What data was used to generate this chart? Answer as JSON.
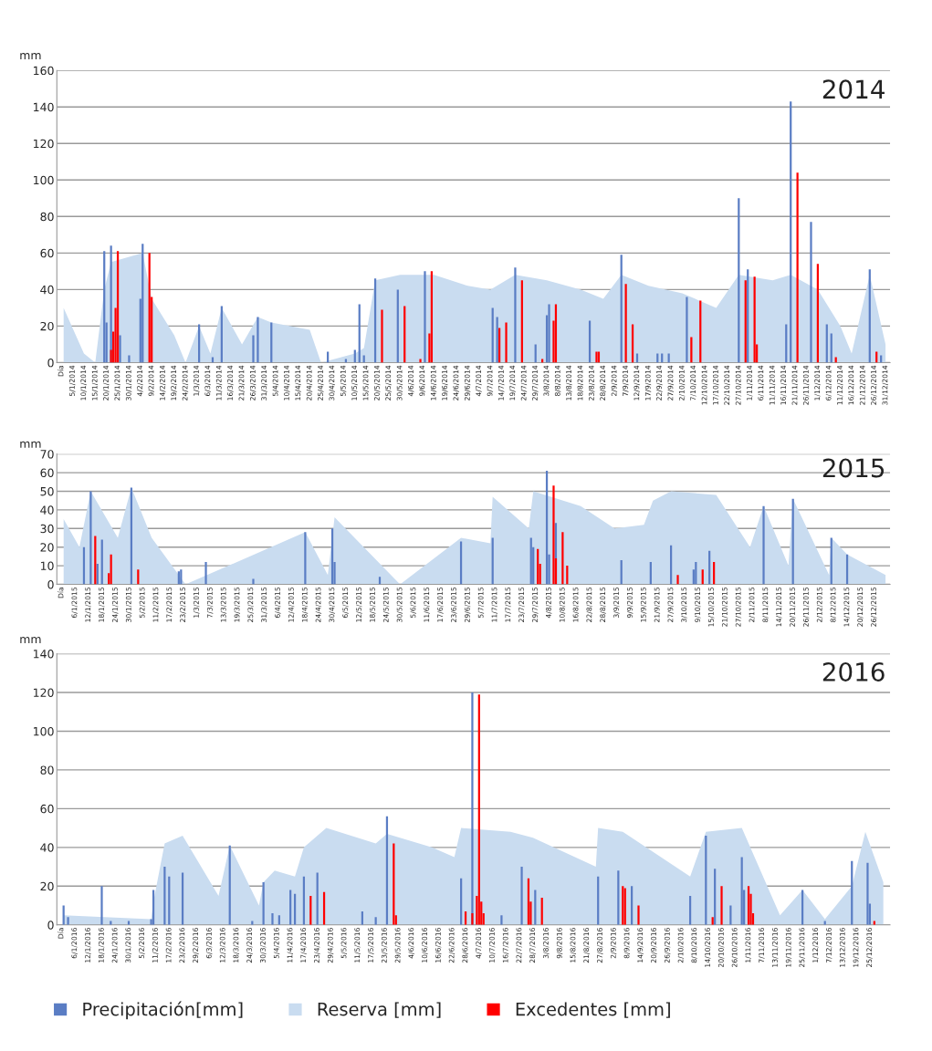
{
  "chart_data": [
    {
      "type": "bar",
      "title": "2014",
      "ylabel": "mm",
      "grid": "y",
      "xlim": [
        "2013-12-29",
        "2015-01-02"
      ],
      "ylim": [
        0,
        160
      ],
      "yticks": [
        0,
        20,
        40,
        60,
        80,
        100,
        120,
        140,
        160
      ],
      "xticks": [
        {
          "value": "2013-12-31",
          "label": "Día"
        },
        {
          "value": "2014-01-05",
          "label": "5/1/2014"
        },
        {
          "value": "2014-01-10",
          "label": "10/1/2014"
        },
        {
          "value": "2014-01-15",
          "label": "15/1/2014"
        },
        {
          "value": "2014-01-20",
          "label": "20/1/2014"
        },
        {
          "value": "2014-01-25",
          "label": "25/1/2014"
        },
        {
          "value": "2014-01-30",
          "label": "30/1/2014"
        },
        {
          "value": "2014-02-04",
          "label": "4/2/2014"
        },
        {
          "value": "2014-02-09",
          "label": "9/2/2014"
        },
        {
          "value": "2014-02-14",
          "label": "14/2/2014"
        },
        {
          "value": "2014-02-19",
          "label": "19/2/2014"
        },
        {
          "value": "2014-02-24",
          "label": "24/2/2014"
        },
        {
          "value": "2014-03-01",
          "label": "1/3/2014"
        },
        {
          "value": "2014-03-06",
          "label": "6/3/2014"
        },
        {
          "value": "2014-03-11",
          "label": "11/3/2014"
        },
        {
          "value": "2014-03-16",
          "label": "16/3/2014"
        },
        {
          "value": "2014-03-21",
          "label": "21/3/2014"
        },
        {
          "value": "2014-03-26",
          "label": "26/3/2014"
        },
        {
          "value": "2014-03-31",
          "label": "31/3/2014"
        },
        {
          "value": "2014-04-05",
          "label": "5/4/2014"
        },
        {
          "value": "2014-04-10",
          "label": "10/4/2014"
        },
        {
          "value": "2014-04-15",
          "label": "15/4/2014"
        },
        {
          "value": "2014-04-20",
          "label": "20/4/2014"
        },
        {
          "value": "2014-04-25",
          "label": "25/4/2014"
        },
        {
          "value": "2014-04-30",
          "label": "30/4/2014"
        },
        {
          "value": "2014-05-05",
          "label": "5/5/2014"
        },
        {
          "value": "2014-05-10",
          "label": "10/5/2014"
        },
        {
          "value": "2014-05-15",
          "label": "15/5/2014"
        },
        {
          "value": "2014-05-20",
          "label": "20/5/2014"
        },
        {
          "value": "2014-05-25",
          "label": "25/5/2014"
        },
        {
          "value": "2014-05-30",
          "label": "30/5/2014"
        },
        {
          "value": "2014-06-04",
          "label": "4/6/2014"
        },
        {
          "value": "2014-06-09",
          "label": "9/6/2014"
        },
        {
          "value": "2014-06-14",
          "label": "14/6/2014"
        },
        {
          "value": "2014-06-19",
          "label": "19/6/2014"
        },
        {
          "value": "2014-06-24",
          "label": "24/6/2014"
        },
        {
          "value": "2014-06-29",
          "label": "29/6/2014"
        },
        {
          "value": "2014-07-04",
          "label": "4/7/2014"
        },
        {
          "value": "2014-07-09",
          "label": "9/7/2014"
        },
        {
          "value": "2014-07-14",
          "label": "14/7/2014"
        },
        {
          "value": "2014-07-19",
          "label": "19/7/2014"
        },
        {
          "value": "2014-07-24",
          "label": "24/7/2014"
        },
        {
          "value": "2014-07-29",
          "label": "29/7/2014"
        },
        {
          "value": "2014-08-03",
          "label": "3/8/2014"
        },
        {
          "value": "2014-08-08",
          "label": "8/8/2014"
        },
        {
          "value": "2014-08-13",
          "label": "13/8/2014"
        },
        {
          "value": "2014-08-18",
          "label": "18/8/2014"
        },
        {
          "value": "2014-08-23",
          "label": "23/8/2014"
        },
        {
          "value": "2014-08-28",
          "label": "28/8/2014"
        },
        {
          "value": "2014-09-02",
          "label": "2/9/2014"
        },
        {
          "value": "2014-09-07",
          "label": "7/9/2014"
        },
        {
          "value": "2014-09-12",
          "label": "12/9/2014"
        },
        {
          "value": "2014-09-17",
          "label": "17/9/2014"
        },
        {
          "value": "2014-09-22",
          "label": "22/9/2014"
        },
        {
          "value": "2014-09-27",
          "label": "27/9/2014"
        },
        {
          "value": "2014-10-02",
          "label": "2/10/2014"
        },
        {
          "value": "2014-10-07",
          "label": "7/10/2014"
        },
        {
          "value": "2014-10-12",
          "label": "12/10/2014"
        },
        {
          "value": "2014-10-17",
          "label": "17/10/2014"
        },
        {
          "value": "2014-10-22",
          "label": "22/10/2014"
        },
        {
          "value": "2014-10-27",
          "label": "27/10/2014"
        },
        {
          "value": "2014-11-01",
          "label": "1/11/2014"
        },
        {
          "value": "2014-11-06",
          "label": "6/11/2014"
        },
        {
          "value": "2014-11-11",
          "label": "11/11/2014"
        },
        {
          "value": "2014-11-16",
          "label": "16/11/2014"
        },
        {
          "value": "2014-11-21",
          "label": "21/11/2014"
        },
        {
          "value": "2014-11-26",
          "label": "26/11/2014"
        },
        {
          "value": "2014-12-01",
          "label": "1/12/2014"
        },
        {
          "value": "2014-12-06",
          "label": "6/12/2014"
        },
        {
          "value": "2014-12-11",
          "label": "11/12/2014"
        },
        {
          "value": "2014-12-16",
          "label": "16/12/2014"
        },
        {
          "value": "2014-12-21",
          "label": "21/12/2014"
        },
        {
          "value": "2014-12-26",
          "label": "26/12/2014"
        },
        {
          "value": "2014-12-31",
          "label": "31/12/2014"
        }
      ],
      "series": [
        {
          "color": "#5a7dc4",
          "x": [
            "2014-01-19",
            "2014-01-20",
            "2014-01-22",
            "2014-01-26",
            "2014-01-30",
            "2014-02-04",
            "2014-02-05",
            "2014-03-02",
            "2014-03-08",
            "2014-03-12",
            "2014-03-26",
            "2014-03-28",
            "2014-04-03",
            "2014-04-28",
            "2014-05-06",
            "2014-05-10",
            "2014-05-12",
            "2014-05-14",
            "2014-05-19",
            "2014-05-29",
            "2014-06-10",
            "2014-07-10",
            "2014-07-12",
            "2014-07-20",
            "2014-07-29",
            "2014-08-03",
            "2014-08-04",
            "2014-08-22",
            "2014-09-05",
            "2014-09-12",
            "2014-09-21",
            "2014-09-23",
            "2014-09-26",
            "2014-10-04",
            "2014-10-27",
            "2014-10-31",
            "2014-11-17",
            "2014-11-19",
            "2014-11-28",
            "2014-12-05",
            "2014-12-07",
            "2014-12-24",
            "2014-12-29"
          ],
          "values": [
            61,
            22,
            64,
            15,
            4,
            35,
            65,
            21,
            3,
            31,
            15,
            25,
            22,
            6,
            2,
            7,
            32,
            4,
            46,
            40,
            50,
            30,
            25,
            52,
            10,
            26,
            32,
            23,
            59,
            5,
            5,
            5,
            5,
            36,
            90,
            51,
            21,
            143,
            77,
            21,
            16,
            51,
            4
          ]
        },
        {
          "type": "area",
          "color": "#c9dcf0",
          "x": [
            "2014-01-01",
            "2014-01-10",
            "2014-01-15",
            "2014-01-19",
            "2014-01-22",
            "2014-02-05",
            "2014-02-09",
            "2014-02-19",
            "2014-02-24",
            "2014-03-02",
            "2014-03-07",
            "2014-03-12",
            "2014-03-21",
            "2014-03-28",
            "2014-04-03",
            "2014-04-20",
            "2014-04-25",
            "2014-05-10",
            "2014-05-14",
            "2014-05-19",
            "2014-05-30",
            "2014-06-14",
            "2014-06-29",
            "2014-07-09",
            "2014-07-20",
            "2014-08-03",
            "2014-08-18",
            "2014-08-28",
            "2014-09-05",
            "2014-09-17",
            "2014-10-02",
            "2014-10-17",
            "2014-10-27",
            "2014-11-11",
            "2014-11-19",
            "2014-12-01",
            "2014-12-11",
            "2014-12-16",
            "2014-12-24",
            "2014-12-31"
          ],
          "values": [
            30,
            5,
            0,
            40,
            55,
            60,
            35,
            15,
            0,
            20,
            5,
            30,
            10,
            25,
            22,
            18,
            0,
            5,
            8,
            45,
            48,
            48,
            42,
            40,
            48,
            45,
            40,
            35,
            48,
            42,
            38,
            30,
            48,
            45,
            48,
            40,
            20,
            5,
            48,
            10
          ]
        },
        {
          "color": "#ff0000",
          "x": [
            "2014-01-22",
            "2014-01-23",
            "2014-01-24",
            "2014-01-25",
            "2014-02-08",
            "2014-02-09",
            "2014-05-22",
            "2014-06-01",
            "2014-06-08",
            "2014-06-12",
            "2014-06-13",
            "2014-07-13",
            "2014-07-16",
            "2014-07-23",
            "2014-08-01",
            "2014-08-06",
            "2014-08-07",
            "2014-08-25",
            "2014-08-26",
            "2014-09-07",
            "2014-09-10",
            "2014-10-06",
            "2014-10-10",
            "2014-10-30",
            "2014-11-03",
            "2014-11-04",
            "2014-11-22",
            "2014-12-01",
            "2014-12-09",
            "2014-12-27"
          ],
          "values": [
            7,
            17,
            30,
            61,
            60,
            36,
            29,
            31,
            2,
            16,
            50,
            19,
            22,
            45,
            2,
            23,
            32,
            6,
            6,
            43,
            21,
            14,
            34,
            45,
            47,
            10,
            104,
            54,
            3,
            6
          ]
        }
      ]
    },
    {
      "type": "bar",
      "title": "2015",
      "ylabel": "mm",
      "grid": "y",
      "xlim": [
        "2014-12-29",
        "2016-01-02"
      ],
      "ylim": [
        0,
        70
      ],
      "yticks": [
        0,
        10,
        20,
        30,
        40,
        50,
        60,
        70
      ],
      "xticks": [
        {
          "value": "2014-12-31",
          "label": "Día"
        },
        {
          "value": "2015-01-06",
          "label": "6/1/2015"
        },
        {
          "value": "2015-01-12",
          "label": "12/1/2015"
        },
        {
          "value": "2015-01-18",
          "label": "18/1/2015"
        },
        {
          "value": "2015-01-24",
          "label": "24/1/2015"
        },
        {
          "value": "2015-01-30",
          "label": "30/1/2015"
        },
        {
          "value": "2015-02-05",
          "label": "5/2/2015"
        },
        {
          "value": "2015-02-11",
          "label": "11/2/2015"
        },
        {
          "value": "2015-02-17",
          "label": "17/2/2015"
        },
        {
          "value": "2015-02-23",
          "label": "23/2/2015"
        },
        {
          "value": "2015-03-01",
          "label": "1/3/2015"
        },
        {
          "value": "2015-03-07",
          "label": "7/3/2015"
        },
        {
          "value": "2015-03-13",
          "label": "13/3/2015"
        },
        {
          "value": "2015-03-19",
          "label": "19/3/2015"
        },
        {
          "value": "2015-03-25",
          "label": "25/3/2015"
        },
        {
          "value": "2015-03-31",
          "label": "31/3/2015"
        },
        {
          "value": "2015-04-06",
          "label": "6/4/2015"
        },
        {
          "value": "2015-04-12",
          "label": "12/4/2015"
        },
        {
          "value": "2015-04-18",
          "label": "18/4/2015"
        },
        {
          "value": "2015-04-24",
          "label": "24/4/2015"
        },
        {
          "value": "2015-04-30",
          "label": "30/4/2015"
        },
        {
          "value": "2015-05-06",
          "label": "6/5/2015"
        },
        {
          "value": "2015-05-12",
          "label": "12/5/2015"
        },
        {
          "value": "2015-05-18",
          "label": "18/5/2015"
        },
        {
          "value": "2015-05-24",
          "label": "24/5/2015"
        },
        {
          "value": "2015-05-30",
          "label": "30/5/2015"
        },
        {
          "value": "2015-06-05",
          "label": "5/6/2015"
        },
        {
          "value": "2015-06-11",
          "label": "11/6/2015"
        },
        {
          "value": "2015-06-17",
          "label": "17/6/2015"
        },
        {
          "value": "2015-06-23",
          "label": "23/6/2015"
        },
        {
          "value": "2015-06-29",
          "label": "29/6/2015"
        },
        {
          "value": "2015-07-05",
          "label": "5/7/2015"
        },
        {
          "value": "2015-07-11",
          "label": "11/7/2015"
        },
        {
          "value": "2015-07-17",
          "label": "17/7/2015"
        },
        {
          "value": "2015-07-23",
          "label": "23/7/2015"
        },
        {
          "value": "2015-07-29",
          "label": "29/7/2015"
        },
        {
          "value": "2015-08-04",
          "label": "4/8/2015"
        },
        {
          "value": "2015-08-10",
          "label": "10/8/2015"
        },
        {
          "value": "2015-08-16",
          "label": "16/8/2015"
        },
        {
          "value": "2015-08-22",
          "label": "22/8/2015"
        },
        {
          "value": "2015-08-28",
          "label": "28/8/2015"
        },
        {
          "value": "2015-09-03",
          "label": "3/9/2015"
        },
        {
          "value": "2015-09-09",
          "label": "9/9/2015"
        },
        {
          "value": "2015-09-15",
          "label": "15/9/2015"
        },
        {
          "value": "2015-09-21",
          "label": "21/9/2015"
        },
        {
          "value": "2015-09-27",
          "label": "27/9/2015"
        },
        {
          "value": "2015-10-03",
          "label": "3/10/2015"
        },
        {
          "value": "2015-10-09",
          "label": "9/10/2015"
        },
        {
          "value": "2015-10-15",
          "label": "15/10/2015"
        },
        {
          "value": "2015-10-21",
          "label": "21/10/2015"
        },
        {
          "value": "2015-10-27",
          "label": "27/10/2015"
        },
        {
          "value": "2015-11-02",
          "label": "2/11/2015"
        },
        {
          "value": "2015-11-08",
          "label": "8/11/2015"
        },
        {
          "value": "2015-11-14",
          "label": "14/11/2015"
        },
        {
          "value": "2015-11-20",
          "label": "20/11/2015"
        },
        {
          "value": "2015-11-26",
          "label": "26/11/2015"
        },
        {
          "value": "2015-12-02",
          "label": "2/12/2015"
        },
        {
          "value": "2015-12-08",
          "label": "8/12/2015"
        },
        {
          "value": "2015-12-14",
          "label": "14/12/2015"
        },
        {
          "value": "2015-12-20",
          "label": "20/12/2015"
        },
        {
          "value": "2015-12-26",
          "label": "26/12/2015"
        }
      ],
      "series": [
        {
          "color": "#5a7dc4",
          "x": [
            "2015-01-10",
            "2015-01-13",
            "2015-01-16",
            "2015-01-18",
            "2015-01-31",
            "2015-02-21",
            "2015-02-22",
            "2015-03-05",
            "2015-03-26",
            "2015-04-18",
            "2015-04-30",
            "2015-05-01",
            "2015-05-21",
            "2015-06-26",
            "2015-07-10",
            "2015-07-27",
            "2015-07-28",
            "2015-08-03",
            "2015-08-04",
            "2015-08-07",
            "2015-09-05",
            "2015-09-18",
            "2015-09-27",
            "2015-10-07",
            "2015-10-08",
            "2015-10-14",
            "2015-11-07",
            "2015-11-20",
            "2015-12-07",
            "2015-12-14"
          ],
          "values": [
            20,
            50,
            11,
            24,
            52,
            7,
            8,
            12,
            3,
            28,
            30,
            12,
            4,
            23,
            25,
            25,
            20,
            61,
            16,
            33,
            13,
            12,
            21,
            8,
            12,
            18,
            42,
            46,
            25,
            16
          ]
        },
        {
          "type": "area",
          "color": "#c9dcf0",
          "x": [
            "2015-01-01",
            "2015-01-08",
            "2015-01-13",
            "2015-01-25",
            "2015-01-31",
            "2015-02-09",
            "2015-02-24",
            "2015-04-18",
            "2015-04-28",
            "2015-05-01",
            "2015-05-30",
            "2015-06-26",
            "2015-07-09",
            "2015-07-10",
            "2015-07-26",
            "2015-07-28",
            "2015-08-18",
            "2015-09-02",
            "2015-09-15",
            "2015-09-19",
            "2015-09-27",
            "2015-10-17",
            "2015-11-01",
            "2015-11-07",
            "2015-11-18",
            "2015-11-20",
            "2015-12-06",
            "2015-12-07",
            "2015-12-14",
            "2015-12-31"
          ],
          "values": [
            35,
            20,
            50,
            25,
            52,
            25,
            0,
            28,
            5,
            36,
            0,
            25,
            22,
            47,
            30,
            50,
            42,
            30,
            32,
            45,
            50,
            48,
            20,
            42,
            10,
            46,
            5,
            25,
            16,
            5
          ]
        },
        {
          "color": "#ff0000",
          "x": [
            "2015-01-15",
            "2015-01-21",
            "2015-01-22",
            "2015-02-03",
            "2015-07-30",
            "2015-07-31",
            "2015-08-06",
            "2015-08-07",
            "2015-08-10",
            "2015-08-12",
            "2015-09-30",
            "2015-10-11",
            "2015-10-16"
          ],
          "values": [
            26,
            6,
            16,
            8,
            19,
            11,
            53,
            14,
            28,
            10,
            5,
            8,
            12
          ]
        }
      ]
    },
    {
      "type": "bar",
      "title": "2016",
      "ylabel": "mm",
      "grid": "y",
      "legend": "bottom",
      "xlim": [
        "2015-12-29",
        "2017-01-03"
      ],
      "ylim": [
        0,
        140
      ],
      "yticks": [
        0,
        20,
        40,
        60,
        80,
        100,
        120,
        140
      ],
      "xticks": [
        {
          "value": "2015-12-31",
          "label": "Día"
        },
        {
          "value": "2016-01-06",
          "label": "6/1/2016"
        },
        {
          "value": "2016-01-12",
          "label": "12/1/2016"
        },
        {
          "value": "2016-01-18",
          "label": "18/1/2016"
        },
        {
          "value": "2016-01-24",
          "label": "24/1/2016"
        },
        {
          "value": "2016-01-30",
          "label": "30/1/2016"
        },
        {
          "value": "2016-02-05",
          "label": "5/2/2016"
        },
        {
          "value": "2016-02-11",
          "label": "11/2/2016"
        },
        {
          "value": "2016-02-17",
          "label": "17/2/2016"
        },
        {
          "value": "2016-02-23",
          "label": "23/2/2016"
        },
        {
          "value": "2016-02-29",
          "label": "29/2/2016"
        },
        {
          "value": "2016-03-06",
          "label": "6/3/2016"
        },
        {
          "value": "2016-03-12",
          "label": "12/3/2016"
        },
        {
          "value": "2016-03-18",
          "label": "18/3/2016"
        },
        {
          "value": "2016-03-24",
          "label": "24/3/2016"
        },
        {
          "value": "2016-03-30",
          "label": "30/3/2016"
        },
        {
          "value": "2016-04-05",
          "label": "5/4/2016"
        },
        {
          "value": "2016-04-11",
          "label": "11/4/2016"
        },
        {
          "value": "2016-04-17",
          "label": "17/4/2016"
        },
        {
          "value": "2016-04-23",
          "label": "23/4/2016"
        },
        {
          "value": "2016-04-29",
          "label": "29/4/2016"
        },
        {
          "value": "2016-05-05",
          "label": "5/5/2016"
        },
        {
          "value": "2016-05-11",
          "label": "11/5/2016"
        },
        {
          "value": "2016-05-17",
          "label": "17/5/2016"
        },
        {
          "value": "2016-05-23",
          "label": "23/5/2016"
        },
        {
          "value": "2016-05-29",
          "label": "29/5/2016"
        },
        {
          "value": "2016-06-04",
          "label": "4/6/2016"
        },
        {
          "value": "2016-06-10",
          "label": "10/6/2016"
        },
        {
          "value": "2016-06-16",
          "label": "16/6/2016"
        },
        {
          "value": "2016-06-22",
          "label": "22/6/2016"
        },
        {
          "value": "2016-06-28",
          "label": "28/6/2016"
        },
        {
          "value": "2016-07-04",
          "label": "4/7/2016"
        },
        {
          "value": "2016-07-10",
          "label": "10/7/2016"
        },
        {
          "value": "2016-07-16",
          "label": "16/7/2016"
        },
        {
          "value": "2016-07-22",
          "label": "22/7/2016"
        },
        {
          "value": "2016-07-28",
          "label": "28/7/2016"
        },
        {
          "value": "2016-08-03",
          "label": "3/8/2016"
        },
        {
          "value": "2016-08-09",
          "label": "9/8/2016"
        },
        {
          "value": "2016-08-15",
          "label": "15/8/2016"
        },
        {
          "value": "2016-08-21",
          "label": "21/8/2016"
        },
        {
          "value": "2016-08-27",
          "label": "27/8/2016"
        },
        {
          "value": "2016-09-02",
          "label": "2/9/2016"
        },
        {
          "value": "2016-09-08",
          "label": "8/9/2016"
        },
        {
          "value": "2016-09-14",
          "label": "14/9/2016"
        },
        {
          "value": "2016-09-20",
          "label": "20/9/2016"
        },
        {
          "value": "2016-09-26",
          "label": "26/9/2016"
        },
        {
          "value": "2016-10-02",
          "label": "2/10/2016"
        },
        {
          "value": "2016-10-08",
          "label": "8/10/2016"
        },
        {
          "value": "2016-10-14",
          "label": "14/10/2016"
        },
        {
          "value": "2016-10-20",
          "label": "20/10/2016"
        },
        {
          "value": "2016-10-26",
          "label": "26/10/2016"
        },
        {
          "value": "2016-11-01",
          "label": "1/11/2016"
        },
        {
          "value": "2016-11-07",
          "label": "7/11/2016"
        },
        {
          "value": "2016-11-13",
          "label": "13/11/2016"
        },
        {
          "value": "2016-11-19",
          "label": "19/11/2016"
        },
        {
          "value": "2016-11-25",
          "label": "25/11/2016"
        },
        {
          "value": "2016-12-01",
          "label": "1/12/2016"
        },
        {
          "value": "2016-12-07",
          "label": "7/12/2016"
        },
        {
          "value": "2016-12-13",
          "label": "13/12/2016"
        },
        {
          "value": "2016-12-19",
          "label": "19/12/2016"
        },
        {
          "value": "2016-12-25",
          "label": "25/12/2016"
        }
      ],
      "series": [
        {
          "name": "Precipitación[mm]",
          "color": "#5a7dc4",
          "x": [
            "2016-01-01",
            "2016-01-03",
            "2016-01-18",
            "2016-01-22",
            "2016-01-30",
            "2016-02-09",
            "2016-02-10",
            "2016-02-15",
            "2016-02-17",
            "2016-02-23",
            "2016-03-15",
            "2016-03-25",
            "2016-03-30",
            "2016-04-03",
            "2016-04-06",
            "2016-04-11",
            "2016-04-13",
            "2016-04-17",
            "2016-04-23",
            "2016-05-13",
            "2016-05-19",
            "2016-05-24",
            "2016-06-26",
            "2016-07-01",
            "2016-07-14",
            "2016-07-23",
            "2016-07-29",
            "2016-08-26",
            "2016-09-04",
            "2016-09-10",
            "2016-10-06",
            "2016-10-13",
            "2016-10-17",
            "2016-10-24",
            "2016-10-29",
            "2016-10-30",
            "2016-11-25",
            "2016-12-05",
            "2016-12-17",
            "2016-12-24",
            "2016-12-25"
          ],
          "values": [
            10,
            4,
            20,
            2,
            2,
            3,
            18,
            30,
            25,
            27,
            41,
            2,
            22,
            6,
            5,
            18,
            16,
            25,
            27,
            7,
            4,
            56,
            24,
            120,
            5,
            30,
            18,
            25,
            28,
            20,
            15,
            46,
            29,
            10,
            35,
            18,
            18,
            2,
            33,
            32,
            11
          ]
        },
        {
          "type": "area",
          "name": "Reserva [mm]",
          "color": "#c9dcf0",
          "x": [
            "2016-01-01",
            "2016-02-09",
            "2016-02-10",
            "2016-02-15",
            "2016-02-23",
            "2016-03-10",
            "2016-03-15",
            "2016-03-28",
            "2016-03-30",
            "2016-04-04",
            "2016-04-13",
            "2016-04-17",
            "2016-04-27",
            "2016-05-19",
            "2016-05-24",
            "2016-06-13",
            "2016-06-23",
            "2016-06-26",
            "2016-07-18",
            "2016-07-28",
            "2016-08-25",
            "2016-08-26",
            "2016-09-06",
            "2016-10-06",
            "2016-10-13",
            "2016-10-29",
            "2016-11-15",
            "2016-11-25",
            "2016-12-05",
            "2016-12-17",
            "2016-12-23",
            "2016-12-31"
          ],
          "values": [
            5,
            3,
            12,
            42,
            46,
            15,
            41,
            10,
            22,
            28,
            25,
            40,
            50,
            42,
            47,
            40,
            35,
            50,
            48,
            45,
            30,
            50,
            48,
            25,
            48,
            50,
            5,
            18,
            3,
            20,
            48,
            22
          ]
        },
        {
          "name": "Excedentes [mm]",
          "color": "#ff0000",
          "x": [
            "2016-04-20",
            "2016-04-26",
            "2016-05-27",
            "2016-05-28",
            "2016-06-28",
            "2016-07-01",
            "2016-07-03",
            "2016-07-04",
            "2016-07-05",
            "2016-07-06",
            "2016-07-26",
            "2016-07-27",
            "2016-08-01",
            "2016-09-06",
            "2016-09-07",
            "2016-09-13",
            "2016-10-16",
            "2016-10-20",
            "2016-11-01",
            "2016-11-02",
            "2016-11-03",
            "2016-12-27"
          ],
          "values": [
            15,
            17,
            42,
            5,
            7,
            6,
            15,
            119,
            12,
            6,
            24,
            12,
            14,
            20,
            19,
            10,
            4,
            20,
            20,
            16,
            6,
            2
          ]
        }
      ]
    }
  ]
}
